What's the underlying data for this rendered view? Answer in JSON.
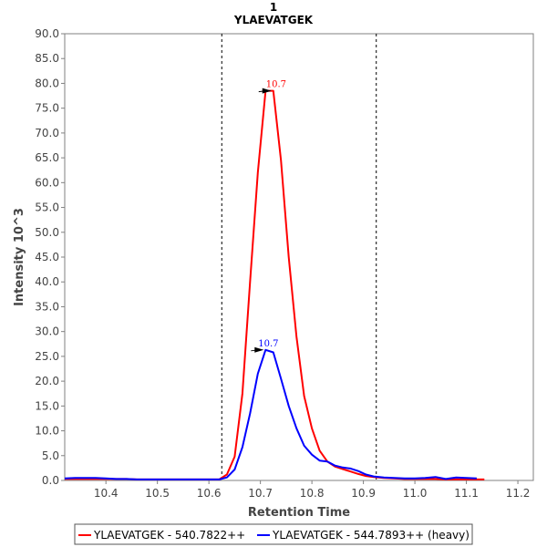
{
  "chart_data": {
    "type": "line",
    "title": "1",
    "subtitle": "YLAEVATGEK",
    "xlabel": "Retention Time",
    "ylabel": "Intensity 10^3",
    "xlim": [
      10.32,
      11.23
    ],
    "ylim": [
      0,
      90
    ],
    "x_ticks": [
      "10.4",
      "10.5",
      "10.6",
      "10.7",
      "10.8",
      "10.9",
      "11.0",
      "11.1",
      "11.2"
    ],
    "x_tick_values": [
      10.4,
      10.5,
      10.6,
      10.7,
      10.8,
      10.9,
      11.0,
      11.1,
      11.2
    ],
    "y_ticks": [
      "0.0",
      "5.0",
      "10.0",
      "15.0",
      "20.0",
      "25.0",
      "30.0",
      "35.0",
      "40.0",
      "45.0",
      "50.0",
      "55.0",
      "60.0",
      "65.0",
      "70.0",
      "75.0",
      "80.0",
      "85.0",
      "90.0"
    ],
    "y_tick_values": [
      0,
      5,
      10,
      15,
      20,
      25,
      30,
      35,
      40,
      45,
      50,
      55,
      60,
      65,
      70,
      75,
      80,
      85,
      90
    ],
    "integration_boundaries": [
      10.625,
      10.925
    ],
    "grid": false,
    "legend_placement": "bottom",
    "series": [
      {
        "name": "YLAEVATGEK - 540.7822++",
        "color": "#ff0000",
        "x": [
          10.32,
          10.34,
          10.36,
          10.38,
          10.4,
          10.42,
          10.44,
          10.46,
          10.48,
          10.5,
          10.52,
          10.54,
          10.56,
          10.58,
          10.6,
          10.62,
          10.635,
          10.65,
          10.665,
          10.68,
          10.695,
          10.71,
          10.725,
          10.74,
          10.755,
          10.77,
          10.785,
          10.8,
          10.815,
          10.83,
          10.845,
          10.86,
          10.875,
          10.89,
          10.905,
          10.92,
          10.94,
          10.96,
          10.98,
          11.0,
          11.02,
          11.04,
          11.06,
          11.08,
          11.1,
          11.12,
          11.135
        ],
        "y": [
          0.3,
          0.3,
          0.3,
          0.3,
          0.3,
          0.3,
          0.3,
          0.2,
          0.2,
          0.2,
          0.2,
          0.2,
          0.2,
          0.2,
          0.2,
          0.2,
          1.2,
          4.8,
          17.5,
          40.0,
          62.0,
          78.5,
          78.5,
          64.5,
          45.0,
          29.0,
          17.0,
          10.5,
          6.0,
          3.8,
          2.8,
          2.3,
          1.8,
          1.3,
          0.9,
          0.7,
          0.5,
          0.4,
          0.3,
          0.3,
          0.3,
          0.3,
          0.2,
          0.2,
          0.2,
          0.2,
          0.2
        ]
      },
      {
        "name": "YLAEVATGEK - 544.7893++ (heavy)",
        "color": "#0000ff",
        "x": [
          10.32,
          10.34,
          10.36,
          10.38,
          10.4,
          10.42,
          10.44,
          10.46,
          10.48,
          10.5,
          10.52,
          10.54,
          10.56,
          10.58,
          10.6,
          10.62,
          10.635,
          10.65,
          10.665,
          10.68,
          10.695,
          10.71,
          10.725,
          10.74,
          10.755,
          10.77,
          10.785,
          10.8,
          10.815,
          10.83,
          10.845,
          10.86,
          10.875,
          10.89,
          10.905,
          10.92,
          10.94,
          10.96,
          10.98,
          11.0,
          11.02,
          11.04,
          11.06,
          11.08,
          11.1,
          11.12
        ],
        "y": [
          0.4,
          0.5,
          0.5,
          0.5,
          0.4,
          0.3,
          0.3,
          0.2,
          0.2,
          0.2,
          0.2,
          0.2,
          0.2,
          0.2,
          0.2,
          0.2,
          0.6,
          2.2,
          6.7,
          13.5,
          21.5,
          26.3,
          25.8,
          20.5,
          15.0,
          10.5,
          7.0,
          5.2,
          4.0,
          3.8,
          3.0,
          2.6,
          2.4,
          1.9,
          1.2,
          0.8,
          0.6,
          0.5,
          0.4,
          0.4,
          0.5,
          0.7,
          0.3,
          0.6,
          0.5,
          0.4
        ]
      }
    ],
    "annotations": [
      {
        "text": "10.7",
        "series": 0,
        "x": 10.725,
        "y": 78.5,
        "color": "#ff0000"
      },
      {
        "text": "10.7",
        "series": 1,
        "x": 10.71,
        "y": 26.3,
        "color": "#0000ff"
      }
    ]
  }
}
